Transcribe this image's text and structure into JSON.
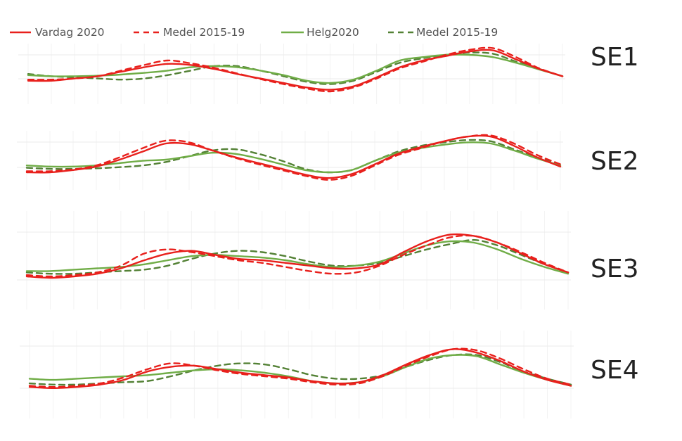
{
  "legend": [
    {
      "label": "Vardag 2020",
      "color": "#e8201c",
      "dash": false
    },
    {
      "label": "Medel 2015-19",
      "color": "#e8201c",
      "dash": true
    },
    {
      "label": "Helg2020",
      "color": "#70ad47",
      "dash": false
    },
    {
      "label": "Medel 2015-19",
      "color": "#538135",
      "dash": true
    }
  ],
  "chart_data": [
    {
      "type": "line",
      "title": "SE1",
      "x": [
        0,
        1,
        2,
        3,
        4,
        5,
        6,
        7,
        8,
        9,
        10,
        11,
        12,
        13,
        14,
        15,
        16,
        17,
        18,
        19,
        20,
        21,
        22,
        23
      ],
      "ylim": [
        0,
        1
      ],
      "grid": true,
      "series": [
        {
          "name": "Vardag 2020",
          "values": [
            0.34,
            0.34,
            0.38,
            0.42,
            0.5,
            0.58,
            0.64,
            0.62,
            0.55,
            0.46,
            0.38,
            0.3,
            0.22,
            0.18,
            0.24,
            0.4,
            0.58,
            0.7,
            0.78,
            0.86,
            0.88,
            0.72,
            0.55,
            0.42
          ]
        },
        {
          "name": "Medel 2015-19",
          "values": [
            0.36,
            0.36,
            0.38,
            0.42,
            0.52,
            0.62,
            0.7,
            0.65,
            0.57,
            0.47,
            0.37,
            0.28,
            0.2,
            0.15,
            0.22,
            0.38,
            0.56,
            0.68,
            0.8,
            0.89,
            0.92,
            0.76,
            0.56,
            0.42
          ]
        },
        {
          "name": "Helg2020",
          "values": [
            0.44,
            0.42,
            0.42,
            0.43,
            0.45,
            0.48,
            0.52,
            0.58,
            0.6,
            0.58,
            0.52,
            0.44,
            0.34,
            0.3,
            0.36,
            0.52,
            0.7,
            0.76,
            0.8,
            0.8,
            0.76,
            0.66,
            0.54,
            0.42
          ]
        },
        {
          "name": "Medel 2015-19",
          "values": [
            0.46,
            0.42,
            0.4,
            0.38,
            0.36,
            0.38,
            0.44,
            0.52,
            0.6,
            0.6,
            0.52,
            0.42,
            0.32,
            0.28,
            0.34,
            0.5,
            0.66,
            0.74,
            0.8,
            0.84,
            0.82,
            0.68,
            0.55,
            0.42
          ]
        }
      ]
    },
    {
      "type": "line",
      "title": "SE2",
      "x": [
        0,
        1,
        2,
        3,
        4,
        5,
        6,
        7,
        8,
        9,
        10,
        11,
        12,
        13,
        14,
        15,
        16,
        17,
        18,
        19,
        20,
        21,
        22,
        23
      ],
      "ylim": [
        0,
        1
      ],
      "grid": true,
      "series": [
        {
          "name": "Vardag 2020",
          "values": [
            0.28,
            0.28,
            0.32,
            0.38,
            0.5,
            0.64,
            0.78,
            0.77,
            0.66,
            0.54,
            0.44,
            0.34,
            0.24,
            0.18,
            0.25,
            0.42,
            0.6,
            0.72,
            0.82,
            0.9,
            0.9,
            0.74,
            0.54,
            0.38
          ]
        },
        {
          "name": "Medel 2015-19",
          "values": [
            0.3,
            0.3,
            0.33,
            0.4,
            0.54,
            0.7,
            0.83,
            0.8,
            0.66,
            0.53,
            0.42,
            0.32,
            0.22,
            0.15,
            0.22,
            0.4,
            0.58,
            0.7,
            0.82,
            0.9,
            0.92,
            0.78,
            0.58,
            0.42
          ]
        },
        {
          "name": "Helg2020",
          "values": [
            0.4,
            0.38,
            0.38,
            0.4,
            0.44,
            0.48,
            0.5,
            0.56,
            0.62,
            0.6,
            0.52,
            0.42,
            0.32,
            0.28,
            0.32,
            0.48,
            0.62,
            0.7,
            0.76,
            0.8,
            0.78,
            0.66,
            0.52,
            0.4
          ]
        },
        {
          "name": "Medel 2015-19",
          "values": [
            0.36,
            0.34,
            0.34,
            0.35,
            0.37,
            0.4,
            0.46,
            0.56,
            0.66,
            0.68,
            0.6,
            0.48,
            0.34,
            0.28,
            0.32,
            0.48,
            0.64,
            0.74,
            0.8,
            0.84,
            0.82,
            0.68,
            0.54,
            0.4
          ]
        }
      ]
    },
    {
      "type": "line",
      "title": "SE3",
      "x": [
        0,
        1,
        2,
        3,
        4,
        5,
        6,
        7,
        8,
        9,
        10,
        11,
        12,
        13,
        14,
        15,
        16,
        17,
        18,
        19,
        20,
        21,
        22,
        23
      ],
      "ylim": [
        0,
        1
      ],
      "grid": true,
      "series": [
        {
          "name": "Vardag 2020",
          "values": [
            0.26,
            0.24,
            0.26,
            0.3,
            0.38,
            0.5,
            0.6,
            0.64,
            0.58,
            0.52,
            0.5,
            0.46,
            0.42,
            0.38,
            0.38,
            0.44,
            0.62,
            0.78,
            0.88,
            0.86,
            0.76,
            0.6,
            0.44,
            0.32
          ]
        },
        {
          "name": "Medel 2015-19",
          "values": [
            0.28,
            0.26,
            0.28,
            0.32,
            0.42,
            0.6,
            0.66,
            0.62,
            0.56,
            0.5,
            0.46,
            0.4,
            0.34,
            0.3,
            0.32,
            0.42,
            0.58,
            0.72,
            0.84,
            0.86,
            0.76,
            0.62,
            0.46,
            0.32
          ]
        },
        {
          "name": "Helg2020",
          "values": [
            0.34,
            0.34,
            0.36,
            0.38,
            0.4,
            0.44,
            0.5,
            0.56,
            0.58,
            0.56,
            0.54,
            0.5,
            0.44,
            0.4,
            0.42,
            0.48,
            0.6,
            0.72,
            0.78,
            0.76,
            0.66,
            0.52,
            0.4,
            0.3
          ]
        },
        {
          "name": "Medel 2015-19",
          "values": [
            0.32,
            0.3,
            0.3,
            0.32,
            0.34,
            0.36,
            0.42,
            0.52,
            0.6,
            0.64,
            0.62,
            0.56,
            0.48,
            0.42,
            0.42,
            0.46,
            0.56,
            0.66,
            0.74,
            0.8,
            0.72,
            0.58,
            0.44,
            0.32
          ]
        }
      ]
    },
    {
      "type": "line",
      "title": "SE4",
      "x": [
        0,
        1,
        2,
        3,
        4,
        5,
        6,
        7,
        8,
        9,
        10,
        11,
        12,
        13,
        14,
        15,
        16,
        17,
        18,
        19,
        20,
        21,
        22,
        23
      ],
      "ylim": [
        0,
        1
      ],
      "grid": true,
      "series": [
        {
          "name": "Vardag 2020",
          "values": [
            0.26,
            0.24,
            0.26,
            0.3,
            0.38,
            0.52,
            0.6,
            0.62,
            0.56,
            0.5,
            0.46,
            0.42,
            0.36,
            0.32,
            0.34,
            0.46,
            0.64,
            0.8,
            0.9,
            0.84,
            0.7,
            0.52,
            0.38,
            0.28
          ]
        },
        {
          "name": "Medel 2015-19",
          "values": [
            0.28,
            0.26,
            0.28,
            0.32,
            0.42,
            0.56,
            0.66,
            0.62,
            0.54,
            0.48,
            0.44,
            0.4,
            0.34,
            0.3,
            0.32,
            0.44,
            0.62,
            0.78,
            0.9,
            0.88,
            0.74,
            0.56,
            0.4,
            0.3
          ]
        },
        {
          "name": "Helg2020",
          "values": [
            0.4,
            0.38,
            0.4,
            0.42,
            0.44,
            0.46,
            0.5,
            0.54,
            0.56,
            0.54,
            0.5,
            0.44,
            0.36,
            0.32,
            0.34,
            0.44,
            0.6,
            0.74,
            0.8,
            0.78,
            0.64,
            0.5,
            0.38,
            0.28
          ]
        },
        {
          "name": "Medel 2015-19",
          "values": [
            0.32,
            0.3,
            0.3,
            0.32,
            0.34,
            0.36,
            0.44,
            0.54,
            0.62,
            0.66,
            0.64,
            0.56,
            0.46,
            0.4,
            0.4,
            0.46,
            0.6,
            0.72,
            0.8,
            0.8,
            0.68,
            0.52,
            0.4,
            0.3
          ]
        }
      ]
    }
  ]
}
